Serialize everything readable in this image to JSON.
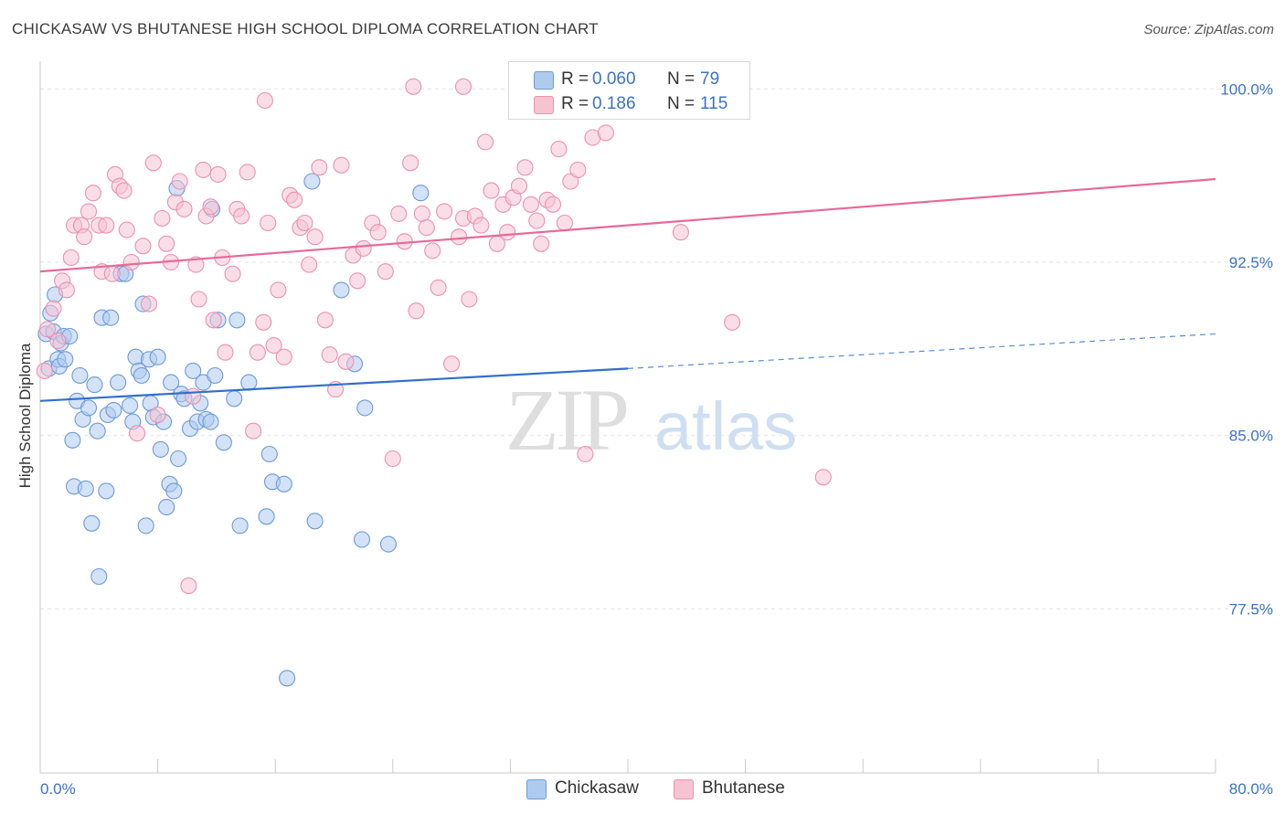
{
  "header": {
    "title": "CHICKASAW VS BHUTANESE HIGH SCHOOL DIPLOMA CORRELATION CHART",
    "source": "Source: ZipAtlas.com"
  },
  "watermark": {
    "zip": "ZIP",
    "atlas": "atlas"
  },
  "legend_top": {
    "rows": [
      {
        "r_label": "R =",
        "r_value": "0.060",
        "n_label": "N =",
        "n_value": "79"
      },
      {
        "r_label": "R =",
        "r_value": "0.186",
        "n_label": "N =",
        "n_value": "115"
      }
    ]
  },
  "legend_bottom": {
    "items": [
      "Chickasaw",
      "Bhutanese"
    ]
  },
  "colors": {
    "blue_fill": "#aecbee",
    "blue_stroke": "#6b9bd8",
    "blue_line": "#2f6fcc",
    "pink_fill": "#f6c3d3",
    "pink_stroke": "#ec90b0",
    "pink_line": "#e66a97",
    "tick_label": "#3b72c7",
    "grid": "#e3e3e3"
  },
  "chart_data": {
    "type": "scatter",
    "title": "CHICKASAW VS BHUTANESE HIGH SCHOOL DIPLOMA CORRELATION CHART",
    "xlabel": "",
    "ylabel": "High School Diploma",
    "xlim": [
      0,
      80
    ],
    "ylim": [
      70.4,
      101.2
    ],
    "x_tick_labels": [
      "0.0%",
      "80.0%"
    ],
    "y_ticks": [
      77.5,
      85.0,
      92.5,
      100.0
    ],
    "y_tick_labels": [
      "77.5%",
      "85.0%",
      "92.5%",
      "100.0%"
    ],
    "grid": true,
    "legend_position": "top-center",
    "series": [
      {
        "name": "Chickasaw",
        "color": "#aecbee",
        "trend": {
          "x0": 0,
          "y0": 86.5,
          "x1": 40,
          "y1": 87.9,
          "dashed_to_x": 80,
          "dashed_to_y": 89.4
        },
        "points": [
          [
            0.4,
            89.4
          ],
          [
            0.6,
            87.9
          ],
          [
            0.7,
            90.3
          ],
          [
            0.9,
            89.5
          ],
          [
            1.0,
            91.1
          ],
          [
            1.2,
            88.3
          ],
          [
            1.3,
            88.0
          ],
          [
            1.4,
            89.0
          ],
          [
            1.6,
            89.3
          ],
          [
            1.7,
            88.3
          ],
          [
            2.0,
            89.3
          ],
          [
            2.2,
            84.8
          ],
          [
            2.3,
            82.8
          ],
          [
            2.5,
            86.5
          ],
          [
            2.7,
            87.6
          ],
          [
            2.9,
            85.7
          ],
          [
            3.1,
            82.7
          ],
          [
            3.3,
            86.2
          ],
          [
            3.5,
            81.2
          ],
          [
            3.7,
            87.2
          ],
          [
            3.9,
            85.2
          ],
          [
            4.0,
            78.9
          ],
          [
            4.2,
            90.1
          ],
          [
            4.5,
            82.6
          ],
          [
            4.6,
            85.9
          ],
          [
            4.8,
            90.1
          ],
          [
            5.0,
            86.1
          ],
          [
            5.3,
            87.3
          ],
          [
            5.5,
            92.0
          ],
          [
            5.8,
            92.0
          ],
          [
            6.1,
            86.3
          ],
          [
            6.3,
            85.6
          ],
          [
            6.5,
            88.4
          ],
          [
            6.7,
            87.8
          ],
          [
            6.9,
            87.6
          ],
          [
            7.0,
            90.7
          ],
          [
            7.2,
            81.1
          ],
          [
            7.4,
            88.3
          ],
          [
            7.5,
            86.4
          ],
          [
            7.7,
            85.8
          ],
          [
            8.0,
            88.4
          ],
          [
            8.2,
            84.4
          ],
          [
            8.4,
            85.6
          ],
          [
            8.6,
            81.9
          ],
          [
            8.8,
            82.9
          ],
          [
            8.9,
            87.3
          ],
          [
            9.1,
            82.6
          ],
          [
            9.3,
            95.7
          ],
          [
            9.4,
            84.0
          ],
          [
            9.6,
            86.8
          ],
          [
            9.8,
            86.6
          ],
          [
            10.2,
            85.3
          ],
          [
            10.4,
            87.8
          ],
          [
            10.7,
            85.6
          ],
          [
            10.9,
            86.4
          ],
          [
            11.1,
            87.3
          ],
          [
            11.3,
            85.7
          ],
          [
            11.6,
            85.6
          ],
          [
            11.7,
            94.8
          ],
          [
            11.9,
            87.6
          ],
          [
            12.1,
            90.0
          ],
          [
            12.5,
            84.7
          ],
          [
            13.2,
            86.6
          ],
          [
            13.4,
            90.0
          ],
          [
            13.6,
            81.1
          ],
          [
            14.2,
            87.3
          ],
          [
            15.4,
            81.5
          ],
          [
            15.6,
            84.2
          ],
          [
            15.8,
            83.0
          ],
          [
            16.6,
            82.9
          ],
          [
            16.8,
            74.5
          ],
          [
            18.5,
            96.0
          ],
          [
            18.7,
            81.3
          ],
          [
            20.5,
            91.3
          ],
          [
            21.4,
            88.1
          ],
          [
            22.1,
            86.2
          ],
          [
            21.9,
            80.5
          ],
          [
            23.7,
            80.3
          ],
          [
            25.9,
            95.5
          ],
          [
            37.1,
            100.0
          ]
        ]
      },
      {
        "name": "Bhutanese",
        "color": "#f6c3d3",
        "trend": {
          "x0": 0,
          "y0": 92.1,
          "x1": 80,
          "y1": 96.1
        },
        "points": [
          [
            0.3,
            87.8
          ],
          [
            0.5,
            89.6
          ],
          [
            0.9,
            90.5
          ],
          [
            1.2,
            89.1
          ],
          [
            1.5,
            91.7
          ],
          [
            1.8,
            91.3
          ],
          [
            2.1,
            92.7
          ],
          [
            2.3,
            94.1
          ],
          [
            2.8,
            94.1
          ],
          [
            3.0,
            93.6
          ],
          [
            3.3,
            94.7
          ],
          [
            3.6,
            95.5
          ],
          [
            4.0,
            94.1
          ],
          [
            4.2,
            92.1
          ],
          [
            4.5,
            94.1
          ],
          [
            4.9,
            92.0
          ],
          [
            5.1,
            96.3
          ],
          [
            5.4,
            95.8
          ],
          [
            5.7,
            95.6
          ],
          [
            5.9,
            93.9
          ],
          [
            6.2,
            92.5
          ],
          [
            6.6,
            85.1
          ],
          [
            7.0,
            93.2
          ],
          [
            7.4,
            90.7
          ],
          [
            7.7,
            96.8
          ],
          [
            8.0,
            85.9
          ],
          [
            8.3,
            94.4
          ],
          [
            8.6,
            93.3
          ],
          [
            8.9,
            92.5
          ],
          [
            9.2,
            95.1
          ],
          [
            9.5,
            96.0
          ],
          [
            9.8,
            94.8
          ],
          [
            10.1,
            78.5
          ],
          [
            10.4,
            86.7
          ],
          [
            10.6,
            92.4
          ],
          [
            10.8,
            90.9
          ],
          [
            11.1,
            96.5
          ],
          [
            11.3,
            94.5
          ],
          [
            11.6,
            94.9
          ],
          [
            11.8,
            90.0
          ],
          [
            12.1,
            96.3
          ],
          [
            12.4,
            92.7
          ],
          [
            12.6,
            88.6
          ],
          [
            13.1,
            92.0
          ],
          [
            13.4,
            94.8
          ],
          [
            13.7,
            94.5
          ],
          [
            14.1,
            96.4
          ],
          [
            14.5,
            85.2
          ],
          [
            14.8,
            88.6
          ],
          [
            15.2,
            89.9
          ],
          [
            15.5,
            94.2
          ],
          [
            15.9,
            88.9
          ],
          [
            16.2,
            91.3
          ],
          [
            16.6,
            88.4
          ],
          [
            17.0,
            95.4
          ],
          [
            17.3,
            95.2
          ],
          [
            17.7,
            94.0
          ],
          [
            18.0,
            94.2
          ],
          [
            18.3,
            92.4
          ],
          [
            18.7,
            93.6
          ],
          [
            19.0,
            96.6
          ],
          [
            19.4,
            90.0
          ],
          [
            19.7,
            88.5
          ],
          [
            20.1,
            87.0
          ],
          [
            20.5,
            96.7
          ],
          [
            20.8,
            88.2
          ],
          [
            21.3,
            92.8
          ],
          [
            21.6,
            91.7
          ],
          [
            22.0,
            93.1
          ],
          [
            22.6,
            94.2
          ],
          [
            23.0,
            93.8
          ],
          [
            23.5,
            92.1
          ],
          [
            24.0,
            84.0
          ],
          [
            24.4,
            94.6
          ],
          [
            24.8,
            93.4
          ],
          [
            25.2,
            96.8
          ],
          [
            25.6,
            90.4
          ],
          [
            26.0,
            94.6
          ],
          [
            26.3,
            94.0
          ],
          [
            26.7,
            93.0
          ],
          [
            27.1,
            91.4
          ],
          [
            27.5,
            94.7
          ],
          [
            28.0,
            88.1
          ],
          [
            28.5,
            93.6
          ],
          [
            28.8,
            94.4
          ],
          [
            29.2,
            90.9
          ],
          [
            29.6,
            94.5
          ],
          [
            30.0,
            94.1
          ],
          [
            30.3,
            97.7
          ],
          [
            30.7,
            95.6
          ],
          [
            31.1,
            93.3
          ],
          [
            31.5,
            95.0
          ],
          [
            31.8,
            93.8
          ],
          [
            32.2,
            95.3
          ],
          [
            32.6,
            95.8
          ],
          [
            33.0,
            96.6
          ],
          [
            33.4,
            95.0
          ],
          [
            33.8,
            94.3
          ],
          [
            34.1,
            93.3
          ],
          [
            34.5,
            95.2
          ],
          [
            34.9,
            95.0
          ],
          [
            35.3,
            97.4
          ],
          [
            35.7,
            94.2
          ],
          [
            36.1,
            96.0
          ],
          [
            36.6,
            96.5
          ],
          [
            37.1,
            84.2
          ],
          [
            37.6,
            97.9
          ],
          [
            38.0,
            100.0
          ],
          [
            38.5,
            98.1
          ],
          [
            43.6,
            93.8
          ],
          [
            47.1,
            89.9
          ],
          [
            53.3,
            83.2
          ],
          [
            25.4,
            100.1
          ],
          [
            28.8,
            100.1
          ],
          [
            15.3,
            99.5
          ]
        ]
      }
    ]
  }
}
